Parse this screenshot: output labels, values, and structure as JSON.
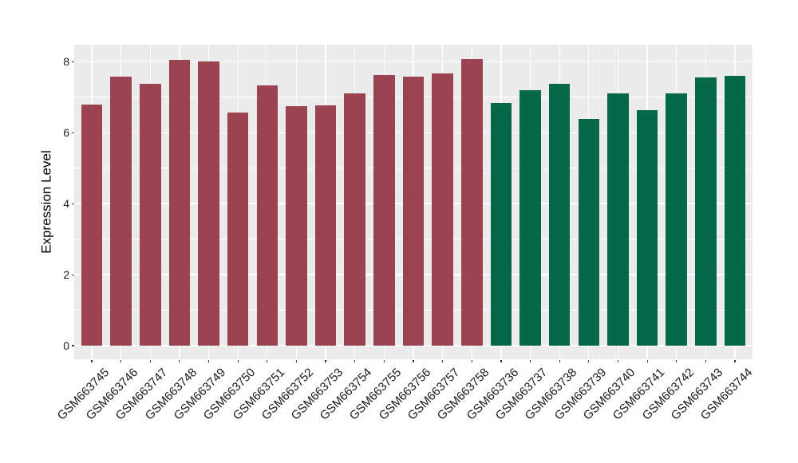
{
  "figure": {
    "background": "#FFFFFF",
    "panel_background": "#EBEBEB",
    "gridline_color": "#FFFFFF",
    "tick_mark_color": "#333333",
    "axis_text_color": "#1A1A1A",
    "axis_title_color": "#000000"
  },
  "chart_data": {
    "type": "bar",
    "title": "",
    "xlabel": "",
    "ylabel": "Expression Level",
    "categories": [
      "GSM663745",
      "GSM663746",
      "GSM663747",
      "GSM663748",
      "GSM663749",
      "GSM663750",
      "GSM663751",
      "GSM663752",
      "GSM663753",
      "GSM663754",
      "GSM663755",
      "GSM663756",
      "GSM663757",
      "GSM663758",
      "GSM663736",
      "GSM663737",
      "GSM663738",
      "GSM663739",
      "GSM663740",
      "GSM663741",
      "GSM663742",
      "GSM663743",
      "GSM663744"
    ],
    "values": [
      6.8,
      7.58,
      7.39,
      8.05,
      8.0,
      6.56,
      7.33,
      6.74,
      6.77,
      7.12,
      7.62,
      7.59,
      7.67,
      8.07,
      6.85,
      7.2,
      7.37,
      6.4,
      7.1,
      6.63,
      7.12,
      7.56,
      7.61
    ],
    "groups": [
      "group1",
      "group1",
      "group1",
      "group1",
      "group1",
      "group1",
      "group1",
      "group1",
      "group1",
      "group1",
      "group1",
      "group1",
      "group1",
      "group1",
      "group2",
      "group2",
      "group2",
      "group2",
      "group2",
      "group2",
      "group2",
      "group2",
      "group2"
    ],
    "group_colors": {
      "group1": "#9B4351",
      "group2": "#046849"
    },
    "y_ticks": [
      0,
      2,
      4,
      6,
      8
    ],
    "y_minor_gridlines": [
      1,
      3,
      5,
      7
    ],
    "ylim": [
      0,
      8.48
    ],
    "panel_value_range": [
      -0.39,
      8.48
    ],
    "grid": "white major+minor horizontal lines and vertical lines at category centers on grey panel",
    "legend_position": "none",
    "x_label_angle_deg": 45
  }
}
